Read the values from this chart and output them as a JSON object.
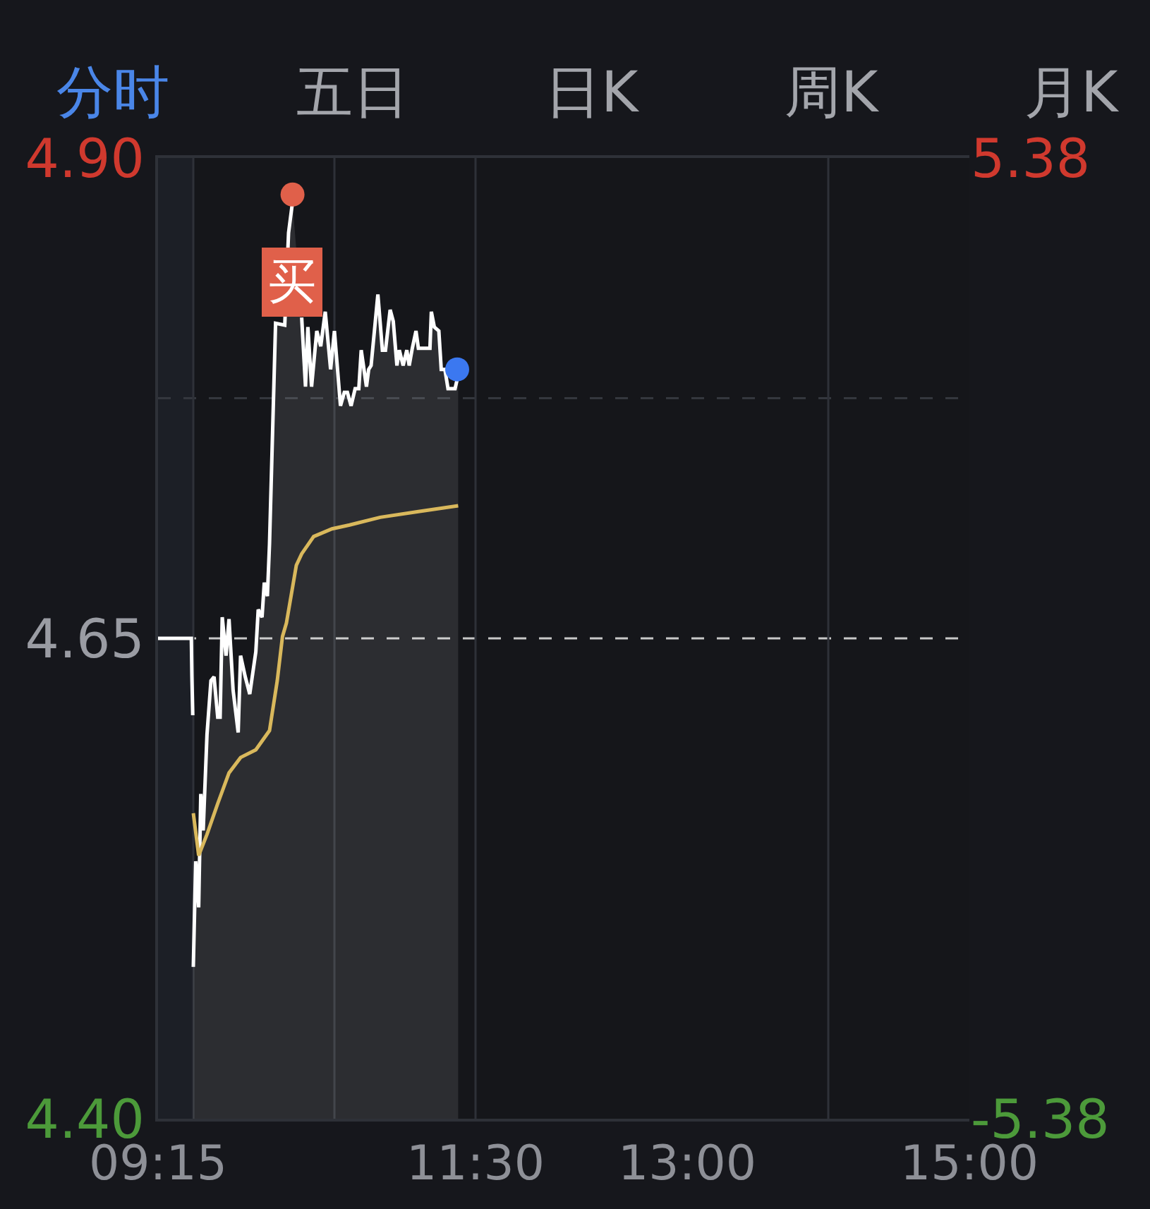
{
  "chart_data": {
    "type": "line",
    "annotations": [
      "分时",
      "五日",
      "日K",
      "周K",
      "月K",
      {
        "text": "买",
        "x": 10.203,
        "y": 4.881
      }
    ],
    "xlim": [
      9.25,
      15
    ],
    "xticks": [
      {
        "value": 9.25,
        "label": "09:15"
      },
      {
        "value": 11.5,
        "label": "11:30"
      },
      {
        "value": 13,
        "label": "13:00"
      },
      {
        "value": 15,
        "label": "15:00"
      }
    ],
    "ylim": [
      4.4,
      4.9
    ],
    "yticks": [
      {
        "value": 4.4,
        "label": "4.40"
      },
      4.65,
      {
        "value": 4.9,
        "label": "4.90"
      }
    ],
    "y2lim": [
      -5.38,
      5.38
    ],
    "y2ticks": [
      -5.38,
      5.38
    ],
    "ref_lines": [
      {
        "axis": "y",
        "value": 4.65,
        "color": "#c8c8c8",
        "line_style": "dashed"
      },
      {
        "axis": "y",
        "value": 4.775,
        "color": "#34373e",
        "line_style": "dashed"
      },
      {
        "axis": "x",
        "value": 9.5,
        "color": "#2e3138",
        "line_style": "solid"
      },
      {
        "axis": "x",
        "value": 10.5,
        "color": "#2e3138",
        "line_style": "solid"
      },
      {
        "axis": "x",
        "value": 11.5,
        "color": "#2e3138",
        "line_style": "solid"
      },
      {
        "axis": "x",
        "value": 14,
        "color": "#2e3138",
        "line_style": "solid"
      }
    ],
    "bands": [
      {
        "axis": "x",
        "from": 9.25,
        "to": 9.5,
        "color": "#1c1f26"
      }
    ],
    "series": [
      {
        "color": "#ffffff",
        "x": [
          9.25,
          9.486,
          9.49,
          9.496
        ],
        "values": [
          4.65,
          4.65,
          4.63,
          4.61
        ]
      },
      {
        "type": "area",
        "color": "#ffffff",
        "x": [
          9.5,
          9.517,
          9.538,
          9.553,
          9.57,
          9.597,
          9.625,
          9.647,
          9.673,
          9.69,
          9.705,
          9.732,
          9.753,
          9.782,
          9.818,
          9.835,
          9.868,
          9.9,
          9.943,
          9.96,
          9.987,
          10.003,
          10.025,
          10.04,
          10.083,
          10.148,
          10.175,
          10.203,
          10.23,
          10.268,
          10.295,
          10.312,
          10.338,
          10.375,
          10.403,
          10.435,
          10.473,
          10.5,
          10.543,
          10.57,
          10.592,
          10.618,
          10.647,
          10.673,
          10.69,
          10.727,
          10.743,
          10.76,
          10.808,
          10.84,
          10.862,
          10.895,
          10.917,
          10.943,
          10.96,
          10.987,
          11.013,
          11.03,
          11.052,
          11.078,
          11.095,
          11.177,
          11.187,
          11.208,
          11.24,
          11.257,
          11.283,
          11.305,
          11.355,
          11.377
        ],
        "values": [
          4.479,
          4.534,
          4.51,
          4.569,
          4.55,
          4.6,
          4.628,
          4.63,
          4.609,
          4.609,
          4.661,
          4.641,
          4.66,
          4.623,
          4.601,
          4.641,
          4.63,
          4.621,
          4.643,
          4.665,
          4.661,
          4.679,
          4.672,
          4.699,
          4.814,
          4.813,
          4.861,
          4.877,
          null,
          4.817,
          4.781,
          4.812,
          4.781,
          4.81,
          4.802,
          4.82,
          4.79,
          4.81,
          4.771,
          4.778,
          4.778,
          4.771,
          4.78,
          4.78,
          4.8,
          4.781,
          4.79,
          4.792,
          4.829,
          4.8,
          4.8,
          4.821,
          4.815,
          4.792,
          4.8,
          4.792,
          4.8,
          4.792,
          4.801,
          4.81,
          4.801,
          4.801,
          4.82,
          4.812,
          4.81,
          4.79,
          4.79,
          4.78,
          4.78,
          4.787
        ]
      },
      {
        "color": "#d9b85c",
        "x": [
          9.5,
          9.538,
          9.597,
          9.673,
          9.753,
          9.835,
          9.943,
          10.04,
          10.095,
          10.132,
          10.16,
          10.23,
          10.268,
          10.353,
          10.483,
          10.608,
          10.825,
          11.095,
          11.377
        ],
        "values": [
          4.559,
          4.537,
          4.548,
          4.564,
          4.58,
          4.588,
          4.592,
          4.602,
          4.628,
          4.651,
          4.658,
          4.688,
          4.694,
          4.703,
          4.707,
          4.709,
          4.713,
          4.716,
          4.719
        ]
      },
      {
        "type": "scatter",
        "color": "#e0604a",
        "marker": "circle",
        "x": [
          10.203
        ],
        "values": [
          4.881
        ]
      },
      {
        "type": "scatter",
        "color": "#3b78f0",
        "marker": "circle",
        "x": [
          11.37
        ],
        "values": [
          4.79
        ]
      }
    ]
  }
}
